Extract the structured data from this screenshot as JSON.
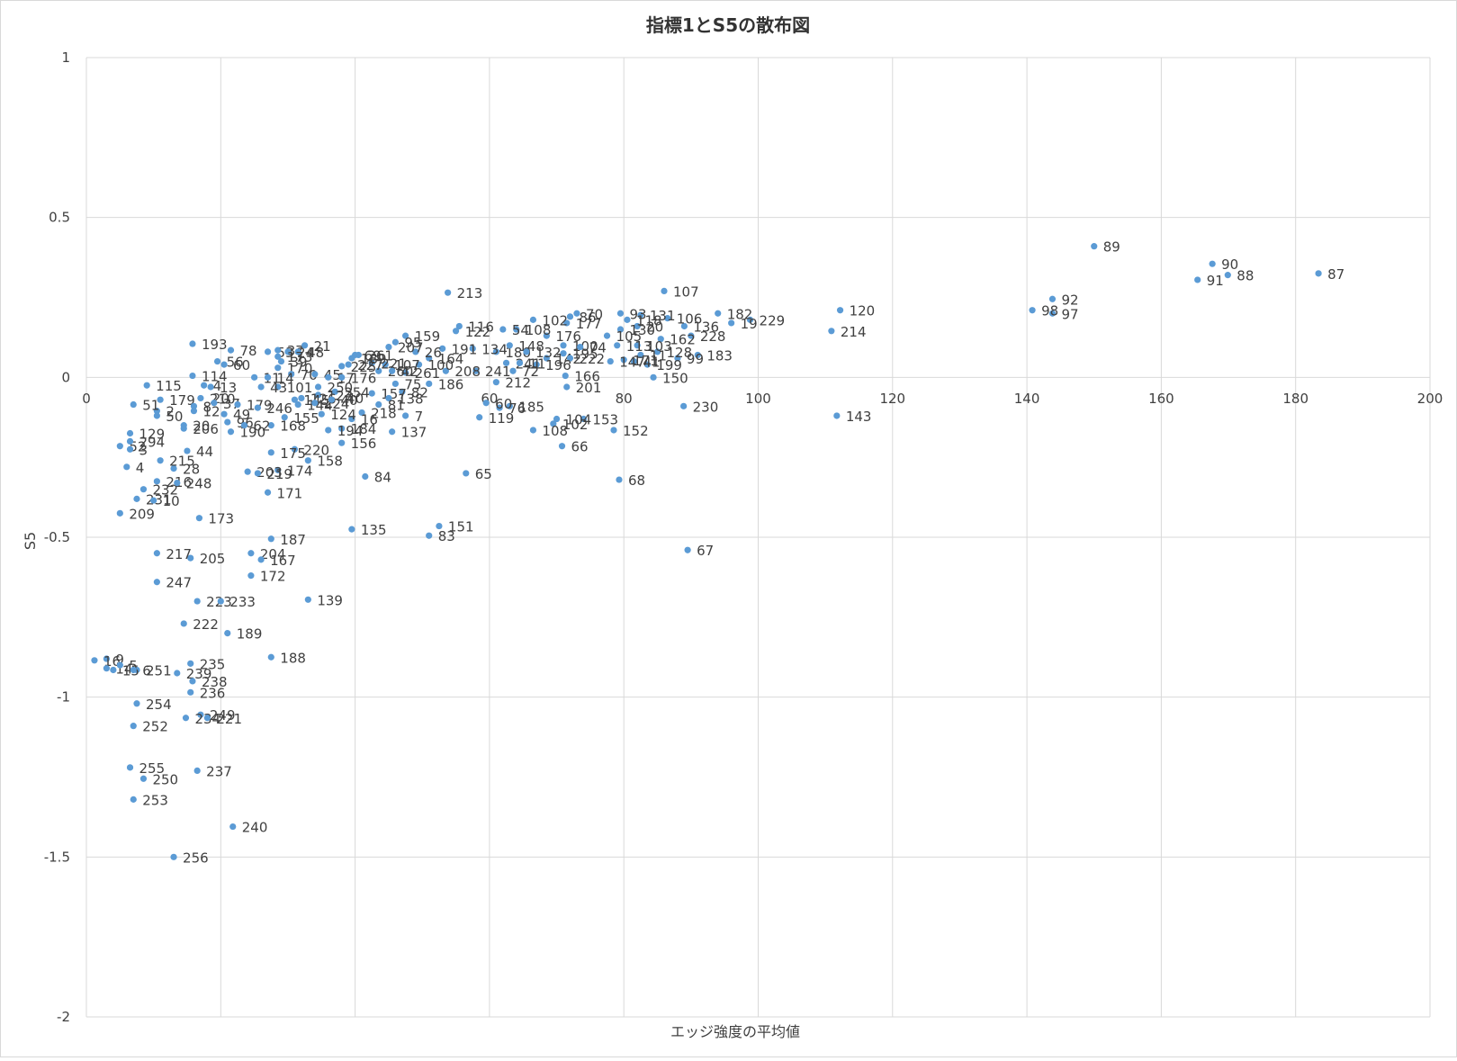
{
  "chart_data": {
    "type": "scatter",
    "title": "指標1とS5の散布図",
    "xlabel": "エッジ強度の平均値",
    "ylabel": "S5",
    "xlim": [
      0,
      200
    ],
    "ylim": [
      -2,
      1
    ],
    "x_ticks": [
      0,
      20,
      40,
      60,
      80,
      100,
      120,
      140,
      160,
      180,
      200
    ],
    "y_ticks": [
      -2,
      -1.5,
      -1,
      -0.5,
      0,
      0.5,
      1
    ],
    "x_tick_labels": [
      "0",
      "20",
      "40",
      "60",
      "80",
      "100",
      "120",
      "140",
      "160",
      "180",
      "200"
    ],
    "y_tick_labels": [
      "-2",
      "-1.5",
      "-1",
      "-0.5",
      "0",
      "0.5",
      "1"
    ],
    "grid": true,
    "legend": "none",
    "color": "#5b9bd5",
    "points": [
      {
        "label": "87",
        "x": 183.4,
        "y": 0.325
      },
      {
        "label": "88",
        "x": 169.9,
        "y": 0.32
      },
      {
        "label": "90",
        "x": 167.6,
        "y": 0.355
      },
      {
        "label": "91",
        "x": 165.4,
        "y": 0.305
      },
      {
        "label": "89",
        "x": 150.0,
        "y": 0.41
      },
      {
        "label": "92",
        "x": 143.8,
        "y": 0.245
      },
      {
        "label": "97",
        "x": 143.8,
        "y": 0.2
      },
      {
        "label": "98",
        "x": 140.8,
        "y": 0.21
      },
      {
        "label": "120",
        "x": 112.2,
        "y": 0.21
      },
      {
        "label": "214",
        "x": 110.9,
        "y": 0.145
      },
      {
        "label": "143",
        "x": 111.7,
        "y": -0.12
      },
      {
        "label": "229",
        "x": 98.8,
        "y": 0.18
      },
      {
        "label": "19",
        "x": 96.0,
        "y": 0.17
      },
      {
        "label": "182",
        "x": 94.0,
        "y": 0.2
      },
      {
        "label": "183",
        "x": 91.0,
        "y": 0.07
      },
      {
        "label": "228",
        "x": 90.0,
        "y": 0.13
      },
      {
        "label": "136",
        "x": 89.0,
        "y": 0.16
      },
      {
        "label": "99",
        "x": 88.0,
        "y": 0.06
      },
      {
        "label": "106",
        "x": 86.5,
        "y": 0.185
      },
      {
        "label": "162",
        "x": 85.5,
        "y": 0.12
      },
      {
        "label": "107",
        "x": 86.0,
        "y": 0.27
      },
      {
        "label": "128",
        "x": 85.0,
        "y": 0.08
      },
      {
        "label": "150",
        "x": 84.4,
        "y": 0.0
      },
      {
        "label": "199",
        "x": 83.5,
        "y": 0.04
      },
      {
        "label": "230",
        "x": 88.9,
        "y": -0.09
      },
      {
        "label": "67",
        "x": 89.5,
        "y": -0.54
      },
      {
        "label": "131",
        "x": 82.5,
        "y": 0.195
      },
      {
        "label": "20",
        "x": 82.0,
        "y": 0.16
      },
      {
        "label": "103",
        "x": 82.0,
        "y": 0.1
      },
      {
        "label": "11",
        "x": 82.5,
        "y": 0.07
      },
      {
        "label": "41",
        "x": 81.5,
        "y": 0.05
      },
      {
        "label": "93",
        "x": 79.5,
        "y": 0.2
      },
      {
        "label": "118",
        "x": 80.5,
        "y": 0.18
      },
      {
        "label": "130",
        "x": 79.5,
        "y": 0.15
      },
      {
        "label": "105",
        "x": 77.5,
        "y": 0.13
      },
      {
        "label": "113",
        "x": 79.0,
        "y": 0.1
      },
      {
        "label": "171",
        "x": 80.0,
        "y": 0.055
      },
      {
        "label": "147",
        "x": 78.0,
        "y": 0.05
      },
      {
        "label": "68",
        "x": 79.3,
        "y": -0.32
      },
      {
        "label": "152",
        "x": 78.5,
        "y": -0.165
      },
      {
        "label": "153",
        "x": 74.0,
        "y": -0.13
      },
      {
        "label": "70",
        "x": 73.0,
        "y": 0.2
      },
      {
        "label": "177",
        "x": 71.5,
        "y": 0.17
      },
      {
        "label": "102",
        "x": 66.5,
        "y": 0.18
      },
      {
        "label": "86",
        "x": 72.0,
        "y": 0.19
      },
      {
        "label": "176",
        "x": 68.5,
        "y": 0.13
      },
      {
        "label": "100",
        "x": 71.0,
        "y": 0.1
      },
      {
        "label": "74",
        "x": 73.5,
        "y": 0.095
      },
      {
        "label": "195",
        "x": 71.0,
        "y": 0.075
      },
      {
        "label": "142",
        "x": 68.5,
        "y": 0.06
      },
      {
        "label": "222",
        "x": 72.0,
        "y": 0.06
      },
      {
        "label": "196",
        "x": 67.0,
        "y": 0.04
      },
      {
        "label": "166",
        "x": 71.3,
        "y": 0.005
      },
      {
        "label": "201",
        "x": 71.5,
        "y": -0.03
      },
      {
        "label": "104",
        "x": 70.0,
        "y": -0.13
      },
      {
        "label": "102b",
        "name": "102",
        "x": 69.5,
        "y": -0.145
      },
      {
        "label": "108",
        "x": 66.5,
        "y": -0.165
      },
      {
        "label": "66",
        "x": 70.8,
        "y": -0.215
      },
      {
        "label": "185",
        "x": 63.0,
        "y": -0.09
      },
      {
        "label": "76",
        "x": 61.5,
        "y": -0.095
      },
      {
        "label": "60",
        "x": 59.5,
        "y": -0.08
      },
      {
        "label": "119",
        "x": 58.5,
        "y": -0.125
      },
      {
        "label": "65",
        "x": 56.5,
        "y": -0.3
      },
      {
        "label": "212",
        "x": 61.0,
        "y": -0.015
      },
      {
        "label": "241",
        "x": 58.0,
        "y": 0.02
      },
      {
        "label": "72",
        "x": 63.5,
        "y": 0.02
      },
      {
        "label": "241b",
        "name": "241",
        "x": 62.5,
        "y": 0.045
      },
      {
        "label": "11b",
        "name": "11",
        "x": 64.5,
        "y": 0.045
      },
      {
        "label": "180",
        "x": 61.0,
        "y": 0.08
      },
      {
        "label": "148",
        "x": 63.0,
        "y": 0.1
      },
      {
        "label": "132",
        "x": 65.5,
        "y": 0.08
      },
      {
        "label": "108b",
        "name": "108",
        "x": 64.0,
        "y": 0.15
      },
      {
        "label": "54",
        "x": 62.0,
        "y": 0.15
      },
      {
        "label": "116",
        "x": 55.5,
        "y": 0.16
      },
      {
        "label": "122",
        "x": 55.0,
        "y": 0.145
      },
      {
        "label": "134",
        "x": 57.5,
        "y": 0.09
      },
      {
        "label": "191",
        "x": 53.0,
        "y": 0.09
      },
      {
        "label": "164",
        "x": 51.0,
        "y": 0.06
      },
      {
        "label": "26",
        "x": 49.0,
        "y": 0.08
      },
      {
        "label": "208",
        "x": 53.5,
        "y": 0.02
      },
      {
        "label": "186",
        "x": 51.0,
        "y": -0.02
      },
      {
        "label": "213",
        "x": 53.8,
        "y": 0.265
      },
      {
        "label": "159",
        "x": 47.5,
        "y": 0.13
      },
      {
        "label": "95",
        "x": 46.0,
        "y": 0.11
      },
      {
        "label": "207",
        "x": 45.0,
        "y": 0.095
      },
      {
        "label": "100b",
        "name": "100",
        "x": 49.5,
        "y": 0.04
      },
      {
        "label": "261",
        "x": 47.5,
        "y": 0.015
      },
      {
        "label": "107b",
        "name": "107",
        "x": 44.5,
        "y": 0.04
      },
      {
        "label": "69",
        "x": 40.0,
        "y": 0.07
      },
      {
        "label": "221",
        "x": 42.5,
        "y": 0.045
      },
      {
        "label": "260",
        "x": 43.5,
        "y": 0.02
      },
      {
        "label": "42",
        "x": 45.5,
        "y": 0.02
      },
      {
        "label": "75",
        "x": 46.0,
        "y": -0.02
      },
      {
        "label": "82",
        "x": 47.0,
        "y": -0.045
      },
      {
        "label": "157",
        "x": 42.5,
        "y": -0.05
      },
      {
        "label": "138",
        "x": 45.0,
        "y": -0.065
      },
      {
        "label": "7",
        "x": 47.5,
        "y": -0.12
      },
      {
        "label": "137",
        "x": 45.5,
        "y": -0.17
      },
      {
        "label": "81",
        "x": 43.5,
        "y": -0.085
      },
      {
        "label": "218",
        "x": 41.0,
        "y": -0.11
      },
      {
        "label": "16",
        "x": 39.5,
        "y": -0.13
      },
      {
        "label": "84",
        "x": 41.5,
        "y": -0.31
      },
      {
        "label": "135",
        "x": 39.5,
        "y": -0.475
      },
      {
        "label": "151",
        "x": 52.5,
        "y": -0.465
      },
      {
        "label": "83",
        "x": 51.0,
        "y": -0.495
      },
      {
        "label": "139",
        "x": 33.0,
        "y": -0.695
      },
      {
        "label": "156",
        "x": 38.0,
        "y": -0.205
      },
      {
        "label": "184",
        "x": 38.0,
        "y": -0.16
      },
      {
        "label": "194",
        "x": 36.0,
        "y": -0.165
      },
      {
        "label": "124",
        "x": 35.0,
        "y": -0.115
      },
      {
        "label": "158",
        "x": 33.0,
        "y": -0.26
      },
      {
        "label": "220",
        "x": 31.0,
        "y": -0.225
      },
      {
        "label": "174",
        "x": 28.5,
        "y": -0.29
      },
      {
        "label": "203",
        "x": 24.0,
        "y": -0.295
      },
      {
        "label": "219",
        "x": 25.5,
        "y": -0.3
      },
      {
        "label": "171b",
        "name": "171",
        "x": 27.0,
        "y": -0.36
      },
      {
        "label": "175",
        "x": 27.5,
        "y": -0.235
      },
      {
        "label": "155",
        "x": 29.5,
        "y": -0.125
      },
      {
        "label": "168",
        "x": 27.5,
        "y": -0.15
      },
      {
        "label": "187",
        "x": 27.5,
        "y": -0.505
      },
      {
        "label": "204",
        "x": 24.5,
        "y": -0.55
      },
      {
        "label": "167",
        "x": 26.0,
        "y": -0.57
      },
      {
        "label": "172",
        "x": 24.5,
        "y": -0.62
      },
      {
        "label": "188",
        "x": 27.5,
        "y": -0.875
      },
      {
        "label": "240",
        "x": 21.8,
        "y": -1.405
      },
      {
        "label": "173",
        "x": 16.8,
        "y": -0.44
      },
      {
        "label": "205",
        "x": 15.5,
        "y": -0.565
      },
      {
        "label": "217",
        "x": 10.5,
        "y": -0.55
      },
      {
        "label": "247",
        "x": 10.5,
        "y": -0.64
      },
      {
        "label": "223",
        "x": 16.5,
        "y": -0.7
      },
      {
        "label": "233",
        "x": 20.0,
        "y": -0.7
      },
      {
        "label": "222b",
        "name": "222",
        "x": 14.5,
        "y": -0.77
      },
      {
        "label": "189",
        "x": 21.0,
        "y": -0.8
      },
      {
        "label": "235",
        "x": 15.5,
        "y": -0.895
      },
      {
        "label": "239",
        "x": 13.5,
        "y": -0.925
      },
      {
        "label": "238",
        "x": 15.8,
        "y": -0.95
      },
      {
        "label": "236",
        "x": 15.5,
        "y": -0.985
      },
      {
        "label": "249",
        "x": 17.0,
        "y": -1.055
      },
      {
        "label": "234",
        "x": 14.8,
        "y": -1.065
      },
      {
        "label": "221b",
        "name": "221",
        "x": 18.0,
        "y": -1.065
      },
      {
        "label": "237",
        "x": 16.5,
        "y": -1.23
      },
      {
        "label": "256",
        "x": 13.0,
        "y": -1.5
      },
      {
        "label": "254",
        "x": 7.5,
        "y": -1.02
      },
      {
        "label": "252",
        "x": 7.0,
        "y": -1.09
      },
      {
        "label": "255",
        "x": 6.5,
        "y": -1.22
      },
      {
        "label": "250",
        "x": 8.5,
        "y": -1.255
      },
      {
        "label": "253",
        "x": 7.0,
        "y": -1.32
      },
      {
        "label": "251",
        "x": 7.5,
        "y": -0.915
      },
      {
        "label": "9",
        "x": 3.0,
        "y": -0.88
      },
      {
        "label": "16b",
        "name": "16",
        "x": 1.2,
        "y": -0.885
      },
      {
        "label": "14",
        "x": 3.0,
        "y": -0.91
      },
      {
        "label": "15",
        "x": 4.0,
        "y": -0.915
      },
      {
        "label": "5",
        "x": 5.0,
        "y": -0.9
      },
      {
        "label": "6",
        "x": 7.0,
        "y": -0.915
      },
      {
        "label": "209",
        "x": 5.0,
        "y": -0.425
      },
      {
        "label": "231",
        "x": 7.5,
        "y": -0.38
      },
      {
        "label": "10",
        "x": 10.0,
        "y": -0.385
      },
      {
        "label": "232",
        "x": 8.5,
        "y": -0.35
      },
      {
        "label": "216",
        "x": 10.5,
        "y": -0.325
      },
      {
        "label": "248",
        "x": 13.5,
        "y": -0.33
      },
      {
        "label": "28",
        "x": 13.0,
        "y": -0.285
      },
      {
        "label": "215",
        "x": 11.0,
        "y": -0.26
      },
      {
        "label": "44",
        "x": 15.0,
        "y": -0.23
      },
      {
        "label": "4",
        "x": 6.0,
        "y": -0.28
      },
      {
        "label": "52",
        "x": 5.0,
        "y": -0.215
      },
      {
        "label": "3",
        "x": 6.5,
        "y": -0.225
      },
      {
        "label": "294",
        "x": 6.5,
        "y": -0.2
      },
      {
        "label": "129",
        "x": 6.5,
        "y": -0.175
      },
      {
        "label": "50",
        "x": 10.5,
        "y": -0.12
      },
      {
        "label": "2",
        "x": 10.5,
        "y": -0.105
      },
      {
        "label": "51",
        "x": 7.0,
        "y": -0.085
      },
      {
        "label": "179",
        "x": 11.0,
        "y": -0.07
      },
      {
        "label": "115",
        "x": 9.0,
        "y": -0.025
      },
      {
        "label": "20b",
        "name": "20",
        "x": 14.5,
        "y": -0.15
      },
      {
        "label": "206",
        "x": 14.5,
        "y": -0.16
      },
      {
        "label": "114",
        "x": 15.8,
        "y": 0.005
      },
      {
        "label": "193",
        "x": 15.8,
        "y": 0.105
      },
      {
        "label": "56",
        "x": 19.5,
        "y": 0.05
      },
      {
        "label": "60b",
        "name": "60",
        "x": 20.5,
        "y": 0.04
      },
      {
        "label": "78",
        "x": 21.5,
        "y": 0.085
      },
      {
        "label": "4b",
        "name": "4",
        "x": 17.5,
        "y": -0.025
      },
      {
        "label": "13",
        "x": 18.5,
        "y": -0.03
      },
      {
        "label": "210",
        "x": 17.0,
        "y": -0.065
      },
      {
        "label": "8",
        "x": 16.0,
        "y": -0.09
      },
      {
        "label": "12",
        "x": 16.0,
        "y": -0.105
      },
      {
        "label": "37",
        "x": 19.0,
        "y": -0.08
      },
      {
        "label": "179b",
        "name": "179",
        "x": 22.5,
        "y": -0.085
      },
      {
        "label": "246",
        "x": 25.5,
        "y": -0.095
      },
      {
        "label": "96",
        "x": 21.0,
        "y": -0.14
      },
      {
        "label": "190",
        "x": 21.5,
        "y": -0.17
      },
      {
        "label": "62",
        "x": 23.5,
        "y": -0.15
      },
      {
        "label": "49",
        "x": 20.5,
        "y": -0.115
      },
      {
        "label": "53",
        "x": 27.0,
        "y": 0.08
      },
      {
        "label": "37b",
        "name": "37",
        "x": 28.5,
        "y": 0.085
      },
      {
        "label": "24",
        "x": 30.0,
        "y": 0.08
      },
      {
        "label": "48",
        "x": 31.5,
        "y": 0.08
      },
      {
        "label": "21",
        "x": 32.5,
        "y": 0.1
      },
      {
        "label": "39",
        "x": 29.0,
        "y": 0.05
      },
      {
        "label": "170",
        "x": 28.5,
        "y": 0.03
      },
      {
        "label": "173b",
        "name": "173",
        "x": 28.5,
        "y": 0.065
      },
      {
        "label": "70b",
        "name": "70",
        "x": 30.5,
        "y": 0.01
      },
      {
        "label": "45",
        "x": 34.0,
        "y": 0.01
      },
      {
        "label": "17",
        "x": 36.0,
        "y": 0.0
      },
      {
        "label": "176b",
        "name": "176",
        "x": 38.0,
        "y": 0.0
      },
      {
        "label": "101",
        "x": 28.5,
        "y": -0.03
      },
      {
        "label": "43",
        "x": 26.0,
        "y": -0.03
      },
      {
        "label": "11c",
        "name": "11",
        "x": 25.0,
        "y": 0.0
      },
      {
        "label": "14b",
        "name": "14",
        "x": 27.0,
        "y": 0.0
      },
      {
        "label": "250b",
        "name": "250",
        "x": 34.5,
        "y": -0.03
      },
      {
        "label": "254b",
        "name": "254",
        "x": 37.0,
        "y": -0.045
      },
      {
        "label": "123",
        "x": 34.5,
        "y": -0.055
      },
      {
        "label": "126",
        "x": 32.0,
        "y": -0.065
      },
      {
        "label": "145",
        "x": 31.0,
        "y": -0.07
      },
      {
        "label": "144",
        "x": 31.5,
        "y": -0.085
      },
      {
        "label": "224",
        "x": 34.0,
        "y": -0.08
      },
      {
        "label": "40",
        "x": 36.5,
        "y": -0.07
      },
      {
        "label": "261b",
        "name": "261",
        "x": 40.5,
        "y": 0.07
      },
      {
        "label": "189b",
        "name": "189",
        "x": 39.5,
        "y": 0.06
      },
      {
        "label": "227",
        "x": 39.0,
        "y": 0.04
      },
      {
        "label": "225",
        "x": 38.0,
        "y": 0.035
      }
    ]
  }
}
